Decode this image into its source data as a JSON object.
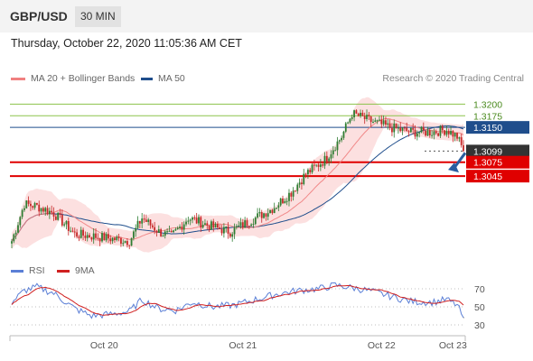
{
  "header": {
    "pair": "GBP/USD",
    "timeframe": "30 MIN"
  },
  "timestamp": "Thursday, October 22, 2020 11:05:36 AM CET",
  "legend": {
    "ma20": "MA 20 + Bollinger Bands",
    "ma50": "MA 50",
    "copyright": "Research © 2020 Trading Central"
  },
  "rsi_legend": {
    "rsi": "RSI",
    "ma9": "9MA"
  },
  "colors": {
    "ma20": "#f08080",
    "ma50": "#1f4e8c",
    "resistance": "#8bc34a",
    "pivot": "#1f4e8c",
    "support": "#e00000",
    "current": "#333333",
    "arrow": "#2a5d9f",
    "candle_up": "#2e7d32",
    "candle_down": "#c62828",
    "band": "#fbd5d5",
    "rsi": "#5b7fd6",
    "rsi_ma": "#d02020"
  },
  "chart_data": [
    {
      "type": "candlestick",
      "ylim": [
        1.288,
        1.323
      ],
      "x_ticks": [
        "Oct 20",
        "Oct 21",
        "Oct 22",
        "Oct 23"
      ],
      "levels": [
        {
          "value": "1.3200",
          "kind": "resistance"
        },
        {
          "value": "1.3175",
          "kind": "resistance"
        },
        {
          "value": "1.3150",
          "kind": "pivot"
        },
        {
          "value": "1.3099",
          "kind": "current"
        },
        {
          "value": "1.3075",
          "kind": "support"
        },
        {
          "value": "1.3045",
          "kind": "support"
        }
      ],
      "close_anchors": [
        [
          0,
          1.2905
        ],
        [
          6,
          1.2985
        ],
        [
          12,
          1.298
        ],
        [
          20,
          1.2965
        ],
        [
          30,
          1.292
        ],
        [
          40,
          1.2915
        ],
        [
          48,
          1.291
        ],
        [
          56,
          1.2905
        ],
        [
          62,
          1.2955
        ],
        [
          70,
          1.2925
        ],
        [
          76,
          1.2915
        ],
        [
          84,
          1.2955
        ],
        [
          96,
          1.2935
        ],
        [
          104,
          1.2925
        ],
        [
          114,
          1.295
        ],
        [
          124,
          1.2975
        ],
        [
          133,
          1.301
        ],
        [
          140,
          1.305
        ],
        [
          149,
          1.308
        ],
        [
          157,
          1.313
        ],
        [
          162,
          1.318
        ],
        [
          170,
          1.3165
        ],
        [
          180,
          1.315
        ],
        [
          190,
          1.314
        ],
        [
          200,
          1.314
        ],
        [
          207,
          1.3145
        ],
        [
          212,
          1.313
        ],
        [
          215,
          1.3099
        ]
      ],
      "arrow": {
        "from": 1.3095,
        "to": 1.3045,
        "direction": "down"
      }
    },
    {
      "type": "line",
      "name": "RSI panel",
      "ylim": [
        20,
        80
      ],
      "y_ticks": [
        "70",
        "50",
        "30"
      ],
      "rsi_anchors": [
        [
          0,
          55
        ],
        [
          6,
          68
        ],
        [
          12,
          72
        ],
        [
          20,
          65
        ],
        [
          30,
          48
        ],
        [
          38,
          40
        ],
        [
          48,
          42
        ],
        [
          56,
          45
        ],
        [
          62,
          58
        ],
        [
          70,
          48
        ],
        [
          78,
          46
        ],
        [
          86,
          55
        ],
        [
          96,
          50
        ],
        [
          106,
          52
        ],
        [
          116,
          58
        ],
        [
          126,
          64
        ],
        [
          136,
          68
        ],
        [
          146,
          70
        ],
        [
          154,
          74
        ],
        [
          160,
          72
        ],
        [
          170,
          68
        ],
        [
          180,
          62
        ],
        [
          190,
          56
        ],
        [
          200,
          55
        ],
        [
          207,
          58
        ],
        [
          212,
          52
        ],
        [
          215,
          38
        ]
      ]
    }
  ]
}
